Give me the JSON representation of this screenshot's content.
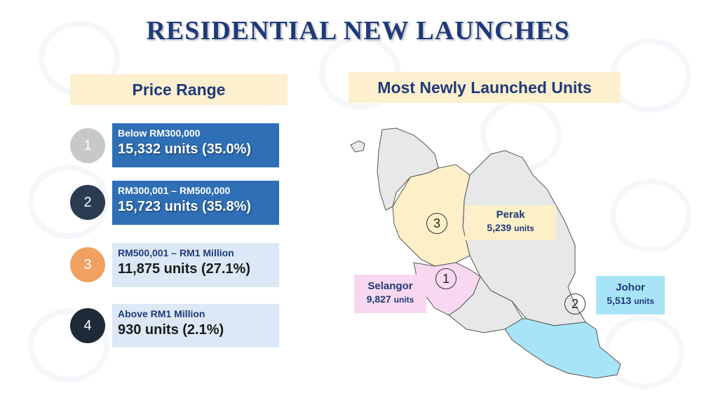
{
  "title": "RESIDENTIAL NEW LAUNCHES",
  "price_range": {
    "heading": "Price Range",
    "items": [
      {
        "rank": "1",
        "label": "Below RM300,000",
        "value": "15,332 units (35.0%)",
        "share_pct": 35.0
      },
      {
        "rank": "2",
        "label": "RM300,001 – RM500,000",
        "value": "15,723 units (35.8%)",
        "share_pct": 35.8
      },
      {
        "rank": "3",
        "label": "RM500,001 – RM1 Million",
        "value": "11,875 units (27.1%)",
        "share_pct": 27.1
      },
      {
        "rank": "4",
        "label": "Above RM1 Million",
        "value": "930 units (2.1%)",
        "share_pct": 2.1
      }
    ]
  },
  "most_units": {
    "heading": "Most Newly Launched Units",
    "regions": [
      {
        "rank": "1",
        "name": "Selangor",
        "units": "9,827",
        "unit_word": "units"
      },
      {
        "rank": "2",
        "name": "Johor",
        "units": "5,513",
        "unit_word": "units"
      },
      {
        "rank": "3",
        "name": "Perak",
        "units": "5,239",
        "unit_word": "units"
      }
    ]
  },
  "colors": {
    "title": "#1f3a7a",
    "rank1": "#c8c8c8",
    "rank2": "#2a3b52",
    "rank3": "#f0a060",
    "rank4": "#1e2a38",
    "selangor": "#f8d8f0",
    "johor": "#a8e4f8",
    "perak": "#fdf0c8",
    "map_base": "#e8e8e8"
  }
}
